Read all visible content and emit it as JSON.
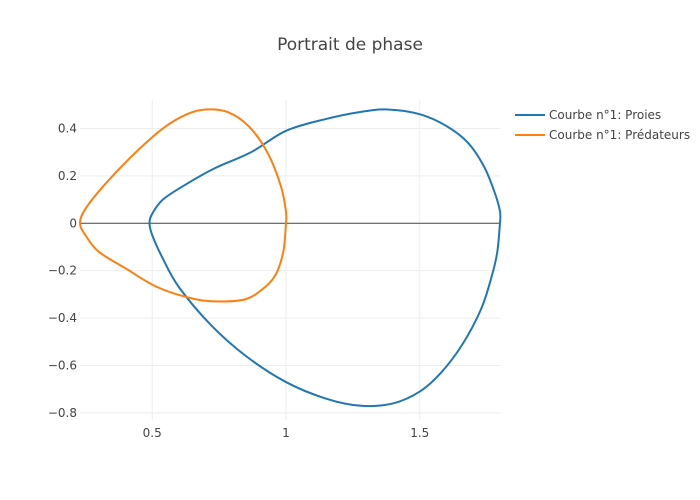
{
  "chart_data": {
    "type": "line",
    "title": "Portrait de phase",
    "xlabel": "",
    "ylabel": "",
    "xlim": [
      0.23,
      1.8
    ],
    "ylim": [
      -0.83,
      0.52
    ],
    "x_ticks": [
      0.5,
      1,
      1.5
    ],
    "x_tick_labels": [
      "0.5",
      "1",
      "1.5"
    ],
    "y_ticks": [
      -0.8,
      -0.6,
      -0.4,
      -0.2,
      0,
      0.2,
      0.4
    ],
    "y_tick_labels": [
      "−0.8",
      "−0.6",
      "−0.4",
      "−0.2",
      "0",
      "0.2",
      "0.4"
    ],
    "grid": true,
    "legend_position": "top-right",
    "series": [
      {
        "name": "Courbe n°1: Proies",
        "color": "#1f77b4",
        "points": [
          [
            1.8,
            0.0
          ],
          [
            1.79,
            -0.12
          ],
          [
            1.77,
            -0.22
          ],
          [
            1.73,
            -0.36
          ],
          [
            1.66,
            -0.51
          ],
          [
            1.58,
            -0.63
          ],
          [
            1.5,
            -0.71
          ],
          [
            1.4,
            -0.76
          ],
          [
            1.28,
            -0.77
          ],
          [
            1.15,
            -0.74
          ],
          [
            1.0,
            -0.67
          ],
          [
            0.85,
            -0.56
          ],
          [
            0.72,
            -0.43
          ],
          [
            0.6,
            -0.27
          ],
          [
            0.54,
            -0.15
          ],
          [
            0.5,
            -0.05
          ],
          [
            0.49,
            0.0
          ],
          [
            0.5,
            0.04
          ],
          [
            0.54,
            0.1
          ],
          [
            0.62,
            0.16
          ],
          [
            0.73,
            0.23
          ],
          [
            0.87,
            0.3
          ],
          [
            1.0,
            0.39
          ],
          [
            1.15,
            0.44
          ],
          [
            1.28,
            0.47
          ],
          [
            1.38,
            0.48
          ],
          [
            1.5,
            0.46
          ],
          [
            1.6,
            0.41
          ],
          [
            1.68,
            0.34
          ],
          [
            1.74,
            0.24
          ],
          [
            1.78,
            0.13
          ],
          [
            1.8,
            0.05
          ],
          [
            1.8,
            0.0
          ]
        ]
      },
      {
        "name": "Courbe n°1: Prédateurs",
        "color": "#ff7f0e",
        "points": [
          [
            1.0,
            0.0
          ],
          [
            0.99,
            -0.12
          ],
          [
            0.96,
            -0.22
          ],
          [
            0.91,
            -0.28
          ],
          [
            0.85,
            -0.32
          ],
          [
            0.76,
            -0.33
          ],
          [
            0.66,
            -0.32
          ],
          [
            0.52,
            -0.27
          ],
          [
            0.4,
            -0.19
          ],
          [
            0.3,
            -0.12
          ],
          [
            0.25,
            -0.05
          ],
          [
            0.23,
            0.0
          ],
          [
            0.25,
            0.06
          ],
          [
            0.32,
            0.16
          ],
          [
            0.43,
            0.29
          ],
          [
            0.54,
            0.4
          ],
          [
            0.63,
            0.46
          ],
          [
            0.7,
            0.48
          ],
          [
            0.78,
            0.47
          ],
          [
            0.86,
            0.41
          ],
          [
            0.93,
            0.3
          ],
          [
            0.98,
            0.16
          ],
          [
            1.0,
            0.05
          ],
          [
            1.0,
            0.0
          ]
        ]
      }
    ]
  }
}
